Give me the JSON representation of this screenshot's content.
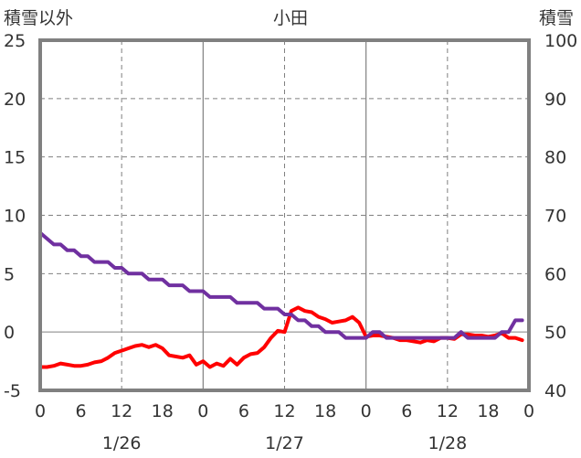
{
  "chart_data": {
    "type": "line",
    "title": "小田",
    "left_axis_label": "積雪以外",
    "right_axis_label": "積雪",
    "y_left": {
      "min": -5,
      "max": 25,
      "ticks": [
        25,
        20,
        15,
        10,
        5,
        0,
        -5
      ]
    },
    "y_right": {
      "min": 40,
      "max": 100,
      "ticks": [
        100,
        90,
        80,
        70,
        60,
        50,
        40
      ]
    },
    "x_hours": {
      "min": 0,
      "max": 72
    },
    "x_tick_labels": [
      "0",
      "6",
      "12",
      "18",
      "0",
      "6",
      "12",
      "18",
      "0",
      "6",
      "12",
      "18",
      "0"
    ],
    "date_labels": [
      "1/26",
      "1/27",
      "1/28"
    ],
    "grid": true,
    "colors": {
      "series_red": "#ff0000",
      "series_purple": "#7030a0",
      "frame": "#808080",
      "grid": "#808080"
    },
    "series": [
      {
        "axis": "left",
        "color": "#ff0000",
        "x": [
          0,
          1,
          2,
          3,
          4,
          5,
          6,
          7,
          8,
          9,
          10,
          11,
          12,
          13,
          14,
          15,
          16,
          17,
          18,
          19,
          20,
          21,
          22,
          23,
          24,
          25,
          26,
          27,
          28,
          29,
          30,
          31,
          32,
          33,
          34,
          35,
          36,
          37,
          38,
          39,
          40,
          41,
          42,
          43,
          44,
          45,
          46,
          47,
          48,
          49,
          50,
          51,
          52,
          53,
          54,
          55,
          56,
          57,
          58,
          59,
          60,
          61,
          62,
          63,
          64,
          65,
          66,
          67,
          68,
          69,
          70,
          71
        ],
        "values": [
          -3.0,
          -3.0,
          -2.9,
          -2.7,
          -2.8,
          -2.9,
          -2.9,
          -2.8,
          -2.6,
          -2.5,
          -2.2,
          -1.8,
          -1.6,
          -1.4,
          -1.2,
          -1.1,
          -1.3,
          -1.1,
          -1.4,
          -2.0,
          -2.1,
          -2.2,
          -2.0,
          -2.8,
          -2.5,
          -3.0,
          -2.7,
          -2.9,
          -2.3,
          -2.8,
          -2.2,
          -1.9,
          -1.8,
          -1.3,
          -0.5,
          0.1,
          0.0,
          1.8,
          2.1,
          1.8,
          1.7,
          1.3,
          1.1,
          0.8,
          0.9,
          1.0,
          1.3,
          0.8,
          -0.4,
          -0.3,
          -0.3,
          -0.4,
          -0.5,
          -0.7,
          -0.7,
          -0.8,
          -0.9,
          -0.7,
          -0.8,
          -0.5,
          -0.5,
          -0.6,
          -0.2,
          -0.2,
          -0.3,
          -0.3,
          -0.4,
          -0.3,
          -0.1,
          -0.5,
          -0.5,
          -0.7
        ]
      },
      {
        "axis": "right",
        "color": "#7030a0",
        "x": [
          0,
          1,
          2,
          3,
          4,
          5,
          6,
          7,
          8,
          9,
          10,
          11,
          12,
          13,
          14,
          15,
          16,
          17,
          18,
          19,
          20,
          21,
          22,
          23,
          24,
          25,
          26,
          27,
          28,
          29,
          30,
          31,
          32,
          33,
          34,
          35,
          36,
          37,
          38,
          39,
          40,
          41,
          42,
          43,
          44,
          45,
          46,
          47,
          48,
          49,
          50,
          51,
          52,
          53,
          54,
          55,
          56,
          57,
          58,
          59,
          60,
          61,
          62,
          63,
          64,
          65,
          66,
          67,
          68,
          69,
          70,
          71
        ],
        "values": [
          67,
          66,
          65,
          65,
          64,
          64,
          63,
          63,
          62,
          62,
          62,
          61,
          61,
          60,
          60,
          60,
          59,
          59,
          59,
          58,
          58,
          58,
          57,
          57,
          57,
          56,
          56,
          56,
          56,
          55,
          55,
          55,
          55,
          54,
          54,
          54,
          53,
          53,
          52,
          52,
          51,
          51,
          50,
          50,
          50,
          49,
          49,
          49,
          49,
          50,
          50,
          49,
          49,
          49,
          49,
          49,
          49,
          49,
          49,
          49,
          49,
          49,
          50,
          49,
          49,
          49,
          49,
          49,
          50,
          50,
          52,
          52
        ]
      }
    ]
  }
}
